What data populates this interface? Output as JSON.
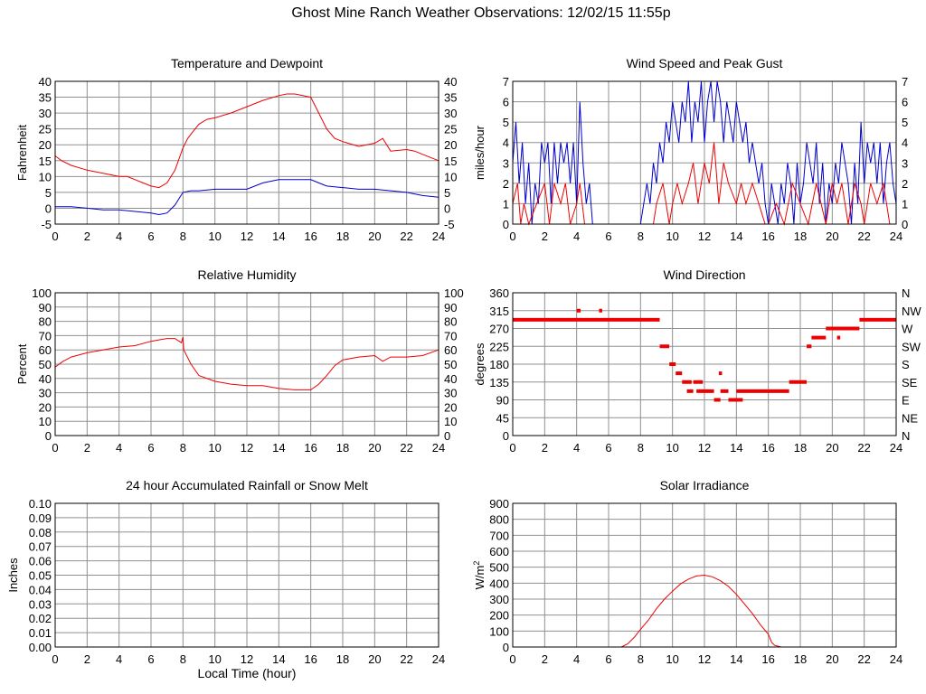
{
  "title": "Ghost Mine Ranch Weather Observations: 12/02/15 11:55p",
  "colors": {
    "red": "#ee0000",
    "blue": "#0000cc",
    "grid": "#909090",
    "axis": "#000000"
  },
  "chart_data": [
    {
      "id": "temperature",
      "type": "line",
      "title": "Temperature and Dewpoint",
      "ylabel": "Fahrenheit",
      "xlabel": "",
      "xlim": [
        0,
        24
      ],
      "ylim": [
        -5,
        40
      ],
      "xticks": [
        0,
        2,
        4,
        6,
        8,
        10,
        12,
        14,
        16,
        18,
        20,
        22,
        24
      ],
      "yticks": [
        -5,
        0,
        5,
        10,
        15,
        20,
        25,
        30,
        35,
        40
      ],
      "right_ticks": [
        "-5",
        "0",
        "5",
        "10",
        "15",
        "20",
        "25",
        "30",
        "35",
        "40"
      ],
      "grid": true,
      "series": [
        {
          "color": "#ee0000",
          "x": [
            0,
            0.4,
            1,
            2,
            3,
            4,
            4.5,
            5,
            5.5,
            6,
            6.5,
            7,
            7.5,
            8,
            8.3,
            8.6,
            9,
            9.5,
            10,
            11,
            12,
            13,
            14,
            14.5,
            15,
            15.5,
            16,
            16.5,
            17,
            17.5,
            18,
            19,
            20,
            20.5,
            21,
            22,
            22.5,
            23,
            24
          ],
          "y": [
            16.5,
            15,
            13.5,
            12,
            11,
            10,
            10,
            9,
            8,
            7,
            6.5,
            8,
            12,
            19,
            22,
            24,
            26.5,
            28,
            28.5,
            30,
            32,
            34,
            35.5,
            36,
            36,
            35.5,
            35,
            30,
            25,
            22,
            21,
            19.5,
            20.5,
            22,
            18,
            18.5,
            18,
            17,
            15
          ]
        },
        {
          "color": "#0000cc",
          "x": [
            0,
            1,
            2,
            3,
            4,
            5,
            6,
            6.5,
            7,
            7.5,
            8,
            8.5,
            9,
            10,
            11,
            12,
            13,
            14,
            15,
            16,
            16.5,
            17,
            18,
            19,
            20,
            21,
            22,
            23,
            24
          ],
          "y": [
            0.5,
            0.5,
            0,
            -0.5,
            -0.5,
            -1,
            -1.5,
            -2,
            -1.5,
            1,
            5,
            5.5,
            5.5,
            6,
            6,
            6,
            8,
            9,
            9,
            9,
            8,
            7,
            6.5,
            6,
            6,
            5.5,
            5,
            4,
            3.5
          ]
        }
      ]
    },
    {
      "id": "wind-speed",
      "type": "line",
      "title": "Wind Speed and Peak Gust",
      "ylabel": "miles/hour",
      "xlabel": "",
      "xlim": [
        0,
        24
      ],
      "ylim": [
        0,
        7
      ],
      "xticks": [
        0,
        2,
        4,
        6,
        8,
        10,
        12,
        14,
        16,
        18,
        20,
        22,
        24
      ],
      "yticks": [
        0,
        1,
        2,
        3,
        4,
        5,
        6,
        7
      ],
      "right_ticks": [
        "0",
        "1",
        "2",
        "3",
        "4",
        "5",
        "6",
        "7"
      ],
      "grid": true,
      "series": [
        {
          "color": "#0000cc",
          "x": [
            0,
            0.2,
            0.4,
            0.6,
            0.8,
            1,
            1.2,
            1.4,
            1.6,
            1.8,
            2,
            2.2,
            2.4,
            2.6,
            2.8,
            3,
            3.2,
            3.4,
            3.6,
            3.8,
            4,
            4.2,
            4.4,
            4.6,
            4.8,
            5,
            5.5,
            6,
            7,
            8,
            8.4,
            8.6,
            8.8,
            9,
            9.2,
            9.4,
            9.6,
            9.8,
            10,
            10.2,
            10.4,
            10.6,
            10.8,
            11,
            11.2,
            11.4,
            11.6,
            11.8,
            12,
            12.2,
            12.4,
            12.6,
            12.8,
            13,
            13.2,
            13.4,
            13.6,
            13.8,
            14,
            14.2,
            14.4,
            14.6,
            14.8,
            15,
            15.2,
            15.4,
            15.6,
            15.8,
            16,
            16.2,
            16.4,
            16.6,
            16.8,
            17,
            17.2,
            17.4,
            17.6,
            17.8,
            18,
            18.2,
            18.4,
            18.6,
            18.8,
            19,
            19.2,
            19.4,
            19.6,
            19.8,
            20,
            20.2,
            20.4,
            20.6,
            20.8,
            21,
            21.2,
            21.4,
            21.6,
            21.8,
            22,
            22.2,
            22.4,
            22.6,
            22.8,
            23,
            23.2,
            23.4,
            23.6,
            23.8,
            24
          ],
          "y": [
            3,
            5,
            2,
            4,
            1,
            3,
            0,
            2,
            1,
            4,
            3,
            4,
            1,
            4,
            2,
            4,
            3,
            4,
            2,
            4,
            1,
            6,
            3,
            1,
            2,
            0,
            0,
            0,
            0,
            0,
            2,
            1,
            3,
            2,
            4,
            3,
            5,
            4,
            6,
            5,
            4,
            6,
            5,
            7,
            4,
            6,
            5,
            7,
            4,
            6,
            7,
            5,
            7,
            6,
            4,
            6,
            5,
            4,
            6,
            5,
            4,
            5,
            3,
            4,
            3,
            2,
            3,
            1,
            0,
            2,
            1,
            0,
            2,
            1,
            3,
            2,
            0,
            3,
            1,
            2,
            4,
            3,
            2,
            4,
            1,
            3,
            0,
            2,
            1,
            3,
            2,
            4,
            3,
            2,
            0,
            3,
            1,
            5,
            2,
            4,
            3,
            4,
            2,
            4,
            1,
            3,
            4,
            2,
            1
          ]
        },
        {
          "color": "#ee0000",
          "x": [
            0,
            0.3,
            0.5,
            0.7,
            1,
            1.5,
            2,
            2.3,
            2.6,
            3,
            3.3,
            3.6,
            4,
            4.2,
            4.5,
            5,
            6,
            8,
            8.8,
            9,
            9.4,
            9.8,
            10,
            10.3,
            10.6,
            11,
            11.3,
            11.6,
            12,
            12.3,
            12.6,
            12.9,
            13.2,
            13.5,
            14,
            14.3,
            14.6,
            15,
            15.4,
            15.8,
            16,
            16.5,
            17,
            17.5,
            18,
            18.5,
            19,
            19.3,
            19.6,
            20,
            20.3,
            20.6,
            21,
            21.4,
            21.8,
            22,
            22.4,
            22.8,
            23.2,
            23.6,
            24
          ],
          "y": [
            1,
            2,
            0,
            1,
            0,
            1,
            2,
            0,
            2,
            1,
            2,
            0,
            1,
            2,
            0,
            0,
            0,
            0,
            0,
            1,
            2,
            0,
            1,
            2,
            1,
            2,
            3,
            1,
            3,
            2,
            4,
            1,
            3,
            2,
            1,
            2,
            1,
            2,
            1,
            0,
            0,
            1,
            0,
            2,
            1,
            0,
            2,
            1,
            0,
            2,
            1,
            2,
            0,
            2,
            1,
            0,
            2,
            1,
            2,
            0,
            0
          ]
        }
      ]
    },
    {
      "id": "humidity",
      "type": "line",
      "title": "Relative Humidity",
      "ylabel": "Percent",
      "xlabel": "",
      "xlim": [
        0,
        24
      ],
      "ylim": [
        0,
        100
      ],
      "xticks": [
        0,
        2,
        4,
        6,
        8,
        10,
        12,
        14,
        16,
        18,
        20,
        22,
        24
      ],
      "yticks": [
        0,
        10,
        20,
        30,
        40,
        50,
        60,
        70,
        80,
        90,
        100
      ],
      "right_ticks": [
        "0",
        "10",
        "20",
        "30",
        "40",
        "50",
        "60",
        "70",
        "80",
        "90",
        "100"
      ],
      "grid": true,
      "series": [
        {
          "color": "#ee0000",
          "x": [
            0,
            0.5,
            1,
            2,
            3,
            4,
            5,
            6,
            6.5,
            7,
            7.5,
            7.9,
            8,
            8.05,
            8.5,
            9,
            10,
            11,
            12,
            13,
            14,
            15,
            16,
            16.5,
            17,
            17.5,
            18,
            19,
            20,
            20.5,
            21,
            22,
            23,
            24
          ],
          "y": [
            48,
            52,
            55,
            58,
            60,
            62,
            63,
            66,
            67,
            68,
            68,
            65,
            69,
            60,
            50,
            42,
            38,
            36,
            35,
            35,
            33,
            32,
            32,
            36,
            42,
            49,
            53,
            55,
            56,
            52,
            55,
            55,
            56,
            60
          ]
        }
      ]
    },
    {
      "id": "wind-direction",
      "type": "scatter",
      "title": "Wind Direction",
      "ylabel": "degrees",
      "xlabel": "",
      "xlim": [
        0,
        24
      ],
      "ylim": [
        0,
        360
      ],
      "xticks": [
        0,
        2,
        4,
        6,
        8,
        10,
        12,
        14,
        16,
        18,
        20,
        22,
        24
      ],
      "yticks": [
        0,
        45,
        90,
        135,
        180,
        225,
        270,
        315,
        360
      ],
      "right_ticks": [
        "N",
        "NE",
        "E",
        "SE",
        "S",
        "SW",
        "W",
        "NW",
        "N"
      ],
      "grid": true,
      "segments": [
        {
          "x0": 0,
          "x1": 9.2,
          "y": 292
        },
        {
          "x0": 4.0,
          "x1": 4.25,
          "y": 315
        },
        {
          "x0": 5.4,
          "x1": 5.6,
          "y": 315
        },
        {
          "x0": 9.2,
          "x1": 9.8,
          "y": 225
        },
        {
          "x0": 9.8,
          "x1": 10.2,
          "y": 180
        },
        {
          "x0": 10.2,
          "x1": 10.6,
          "y": 157
        },
        {
          "x0": 10.6,
          "x1": 11.2,
          "y": 135
        },
        {
          "x0": 10.9,
          "x1": 11.3,
          "y": 112
        },
        {
          "x0": 11.3,
          "x1": 11.6,
          "y": 135
        },
        {
          "x0": 11.5,
          "x1": 12.6,
          "y": 112
        },
        {
          "x0": 11.6,
          "x1": 11.9,
          "y": 135
        },
        {
          "x0": 12.6,
          "x1": 13.0,
          "y": 90
        },
        {
          "x0": 12.9,
          "x1": 13.1,
          "y": 157
        },
        {
          "x0": 13.0,
          "x1": 13.5,
          "y": 112
        },
        {
          "x0": 13.5,
          "x1": 14.4,
          "y": 90
        },
        {
          "x0": 14.0,
          "x1": 17.3,
          "y": 112
        },
        {
          "x0": 17.3,
          "x1": 18.4,
          "y": 135
        },
        {
          "x0": 18.4,
          "x1": 18.7,
          "y": 225
        },
        {
          "x0": 18.7,
          "x1": 19.6,
          "y": 247
        },
        {
          "x0": 19.6,
          "x1": 21.7,
          "y": 270
        },
        {
          "x0": 20.3,
          "x1": 20.5,
          "y": 247
        },
        {
          "x0": 21.7,
          "x1": 24,
          "y": 292
        }
      ]
    },
    {
      "id": "rainfall",
      "type": "line",
      "title": "24 hour Accumulated Rainfall or Snow Melt",
      "ylabel": "Inches",
      "xlabel": "Local Time (hour)",
      "xlim": [
        0,
        24
      ],
      "ylim": [
        0,
        0.1
      ],
      "xticks": [
        0,
        2,
        4,
        6,
        8,
        10,
        12,
        14,
        16,
        18,
        20,
        22,
        24
      ],
      "yticks": [
        0,
        0.01,
        0.02,
        0.03,
        0.04,
        0.05,
        0.06,
        0.07,
        0.08,
        0.09,
        0.1
      ],
      "ytick_labels": [
        "0.00",
        "0.01",
        "0.02",
        "0.03",
        "0.04",
        "0.05",
        "0.06",
        "0.07",
        "0.08",
        "0.09",
        "0.10"
      ],
      "grid": true,
      "series": [
        {
          "color": "#ee0000",
          "x": [
            0,
            24
          ],
          "y": [
            0,
            0
          ]
        }
      ]
    },
    {
      "id": "solar",
      "type": "line",
      "title": "Solar Irradiance",
      "ylabel": "W/m",
      "ylabel_sup": "2",
      "xlabel": "",
      "xlim": [
        0,
        24
      ],
      "ylim": [
        0,
        900
      ],
      "xticks": [
        0,
        2,
        4,
        6,
        8,
        10,
        12,
        14,
        16,
        18,
        20,
        22,
        24
      ],
      "yticks": [
        0,
        100,
        200,
        300,
        400,
        500,
        600,
        700,
        800,
        900
      ],
      "grid": true,
      "series": [
        {
          "color": "#ee0000",
          "x": [
            0,
            6.8,
            7.2,
            7.6,
            8,
            8.5,
            9,
            9.5,
            10,
            10.5,
            11,
            11.5,
            12,
            12.5,
            13,
            13.5,
            14,
            14.5,
            15,
            15.5,
            16,
            16.2,
            16.4,
            16.8,
            24
          ],
          "y": [
            0,
            0,
            20,
            60,
            110,
            170,
            240,
            300,
            350,
            395,
            425,
            445,
            450,
            440,
            415,
            380,
            330,
            270,
            210,
            140,
            80,
            30,
            10,
            0,
            0
          ]
        }
      ]
    }
  ]
}
